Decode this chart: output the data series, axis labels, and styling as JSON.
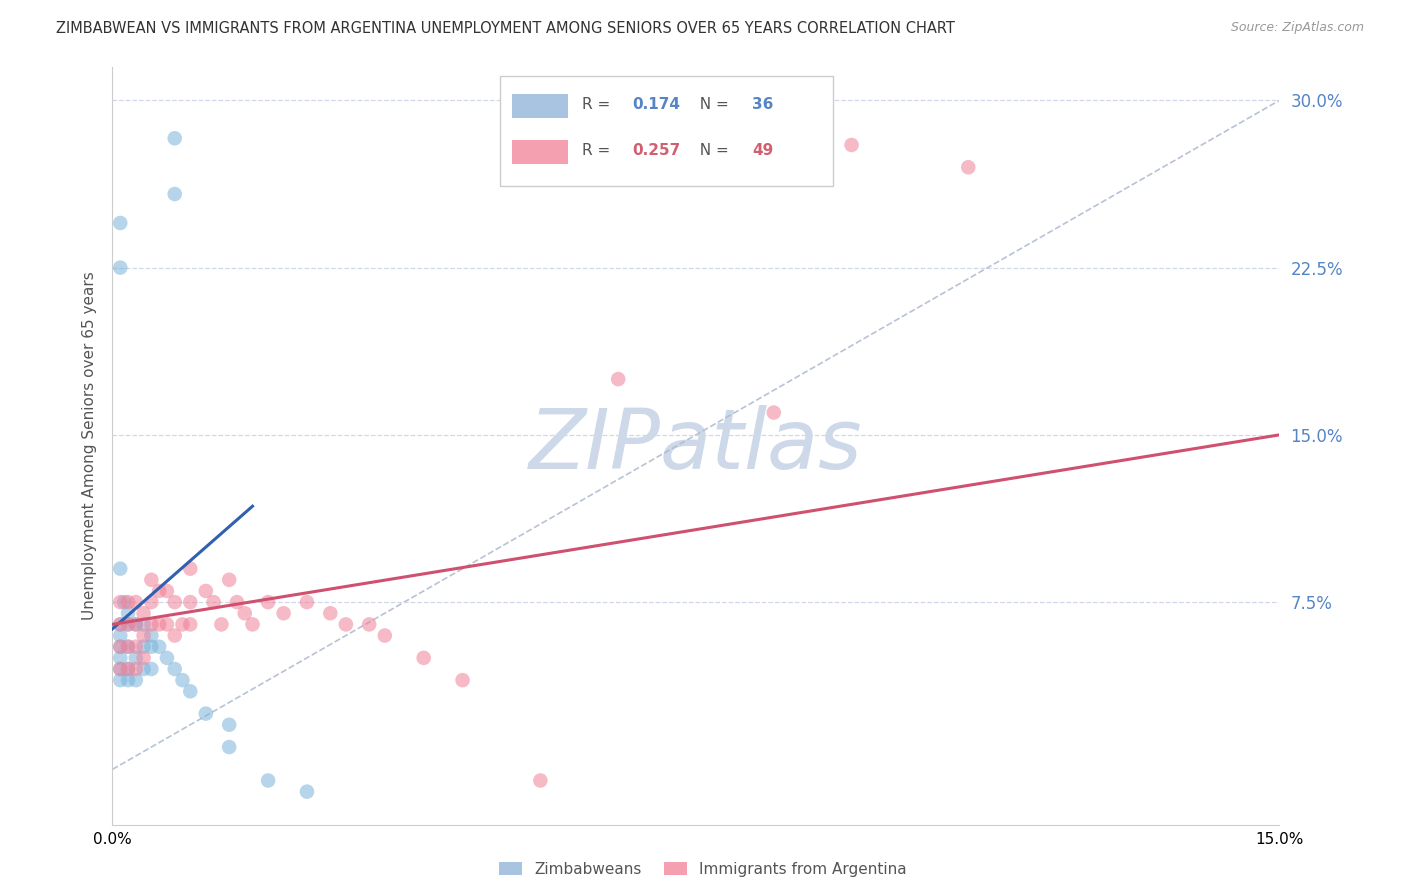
{
  "title": "ZIMBABWEAN VS IMMIGRANTS FROM ARGENTINA UNEMPLOYMENT AMONG SENIORS OVER 65 YEARS CORRELATION CHART",
  "source": "Source: ZipAtlas.com",
  "ylabel": "Unemployment Among Seniors over 65 years",
  "right_ytick_vals": [
    0.075,
    0.15,
    0.225,
    0.3
  ],
  "xlim": [
    0.0,
    0.15
  ],
  "ylim": [
    -0.025,
    0.315
  ],
  "xtick_vals": [
    0.0,
    0.03,
    0.06,
    0.09,
    0.12,
    0.15
  ],
  "xtick_labels": [
    "0.0%",
    "",
    "",
    "",
    "",
    "15.0%"
  ],
  "watermark": "ZIPatlas",
  "scatter_blue_x": [
    0.008,
    0.008,
    0.001,
    0.001,
    0.001,
    0.0015,
    0.001,
    0.001,
    0.001,
    0.001,
    0.001,
    0.001,
    0.002,
    0.002,
    0.002,
    0.002,
    0.002,
    0.003,
    0.003,
    0.003,
    0.004,
    0.004,
    0.004,
    0.005,
    0.005,
    0.005,
    0.006,
    0.007,
    0.008,
    0.009,
    0.01,
    0.012,
    0.015,
    0.015,
    0.02,
    0.025
  ],
  "scatter_blue_y": [
    0.283,
    0.258,
    0.245,
    0.225,
    0.09,
    0.075,
    0.065,
    0.06,
    0.055,
    0.05,
    0.045,
    0.04,
    0.07,
    0.065,
    0.055,
    0.045,
    0.04,
    0.065,
    0.05,
    0.04,
    0.065,
    0.055,
    0.045,
    0.06,
    0.055,
    0.045,
    0.055,
    0.05,
    0.045,
    0.04,
    0.035,
    0.025,
    0.02,
    0.01,
    -0.005,
    -0.01
  ],
  "scatter_pink_x": [
    0.001,
    0.001,
    0.001,
    0.001,
    0.002,
    0.002,
    0.002,
    0.002,
    0.003,
    0.003,
    0.003,
    0.003,
    0.004,
    0.004,
    0.004,
    0.005,
    0.005,
    0.005,
    0.006,
    0.006,
    0.007,
    0.007,
    0.008,
    0.008,
    0.009,
    0.01,
    0.01,
    0.01,
    0.012,
    0.013,
    0.014,
    0.015,
    0.016,
    0.017,
    0.018,
    0.02,
    0.022,
    0.025,
    0.028,
    0.03,
    0.033,
    0.035,
    0.04,
    0.045,
    0.055,
    0.065,
    0.085,
    0.095,
    0.11
  ],
  "scatter_pink_y": [
    0.075,
    0.065,
    0.055,
    0.045,
    0.075,
    0.065,
    0.055,
    0.045,
    0.075,
    0.065,
    0.055,
    0.045,
    0.07,
    0.06,
    0.05,
    0.085,
    0.075,
    0.065,
    0.08,
    0.065,
    0.08,
    0.065,
    0.075,
    0.06,
    0.065,
    0.09,
    0.075,
    0.065,
    0.08,
    0.075,
    0.065,
    0.085,
    0.075,
    0.07,
    0.065,
    0.075,
    0.07,
    0.075,
    0.07,
    0.065,
    0.065,
    0.06,
    0.05,
    0.04,
    -0.005,
    0.175,
    0.16,
    0.28,
    0.27
  ],
  "blue_line_x": [
    0.0,
    0.018
  ],
  "blue_line_y": [
    0.063,
    0.118
  ],
  "pink_line_x": [
    0.0,
    0.15
  ],
  "pink_line_y": [
    0.065,
    0.15
  ],
  "diag_line_x": [
    0.0,
    0.15
  ],
  "diag_line_y": [
    0.0,
    0.3
  ],
  "blue_scatter_color": "#7ab3d9",
  "pink_scatter_color": "#f08098",
  "blue_line_color": "#3060b0",
  "pink_line_color": "#d05070",
  "diag_line_color": "#b0bcd0",
  "background_color": "#ffffff",
  "grid_color": "#d0d8e8",
  "title_fontsize": 10.5,
  "axis_label_fontsize": 11,
  "tick_fontsize": 11,
  "watermark_color": "#cdd8e8",
  "watermark_fontsize": 60,
  "legend_r1": "0.174",
  "legend_n1": "36",
  "legend_r2": "0.257",
  "legend_n2": "49",
  "legend_blue_color": "#5585c5",
  "legend_pink_color": "#d06070",
  "right_axis_color": "#5585c5"
}
